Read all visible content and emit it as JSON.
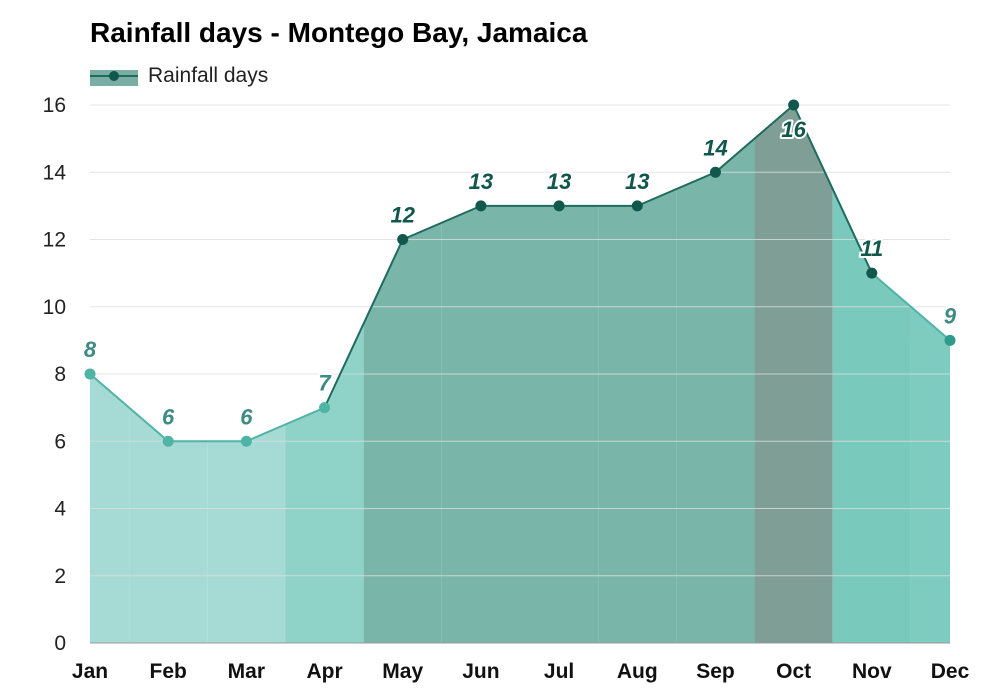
{
  "chart_data": {
    "type": "area",
    "title": "Rainfall days - Montego Bay, Jamaica",
    "xlabel": "",
    "ylabel": "",
    "categories": [
      "Jan",
      "Feb",
      "Mar",
      "Apr",
      "May",
      "Jun",
      "Jul",
      "Aug",
      "Sep",
      "Oct",
      "Nov",
      "Dec"
    ],
    "series": [
      {
        "name": "Rainfall days",
        "values": [
          8,
          6,
          6,
          7,
          12,
          13,
          13,
          13,
          14,
          16,
          11,
          9
        ]
      }
    ],
    "ylim": [
      0,
      16
    ],
    "yticks": [
      0,
      2,
      4,
      6,
      8,
      10,
      12,
      14,
      16
    ],
    "grid": true,
    "legend": "top-left",
    "colors": {
      "line_dark": "#1f6b5e",
      "line_light": "#4fb3a6",
      "label_dark": "#11574c",
      "label_light": "#3d8c82",
      "season_colors": [
        "#a5dbd4",
        "#a5dbd4",
        "#a5dbd4",
        "#8fd2c8",
        "#7ab5aa",
        "#7ab5aa",
        "#7ab5aa",
        "#7ab5aa",
        "#7ab5aa",
        "#7f9f96",
        "#7ac9bd",
        "#7ecbc0"
      ]
    }
  }
}
